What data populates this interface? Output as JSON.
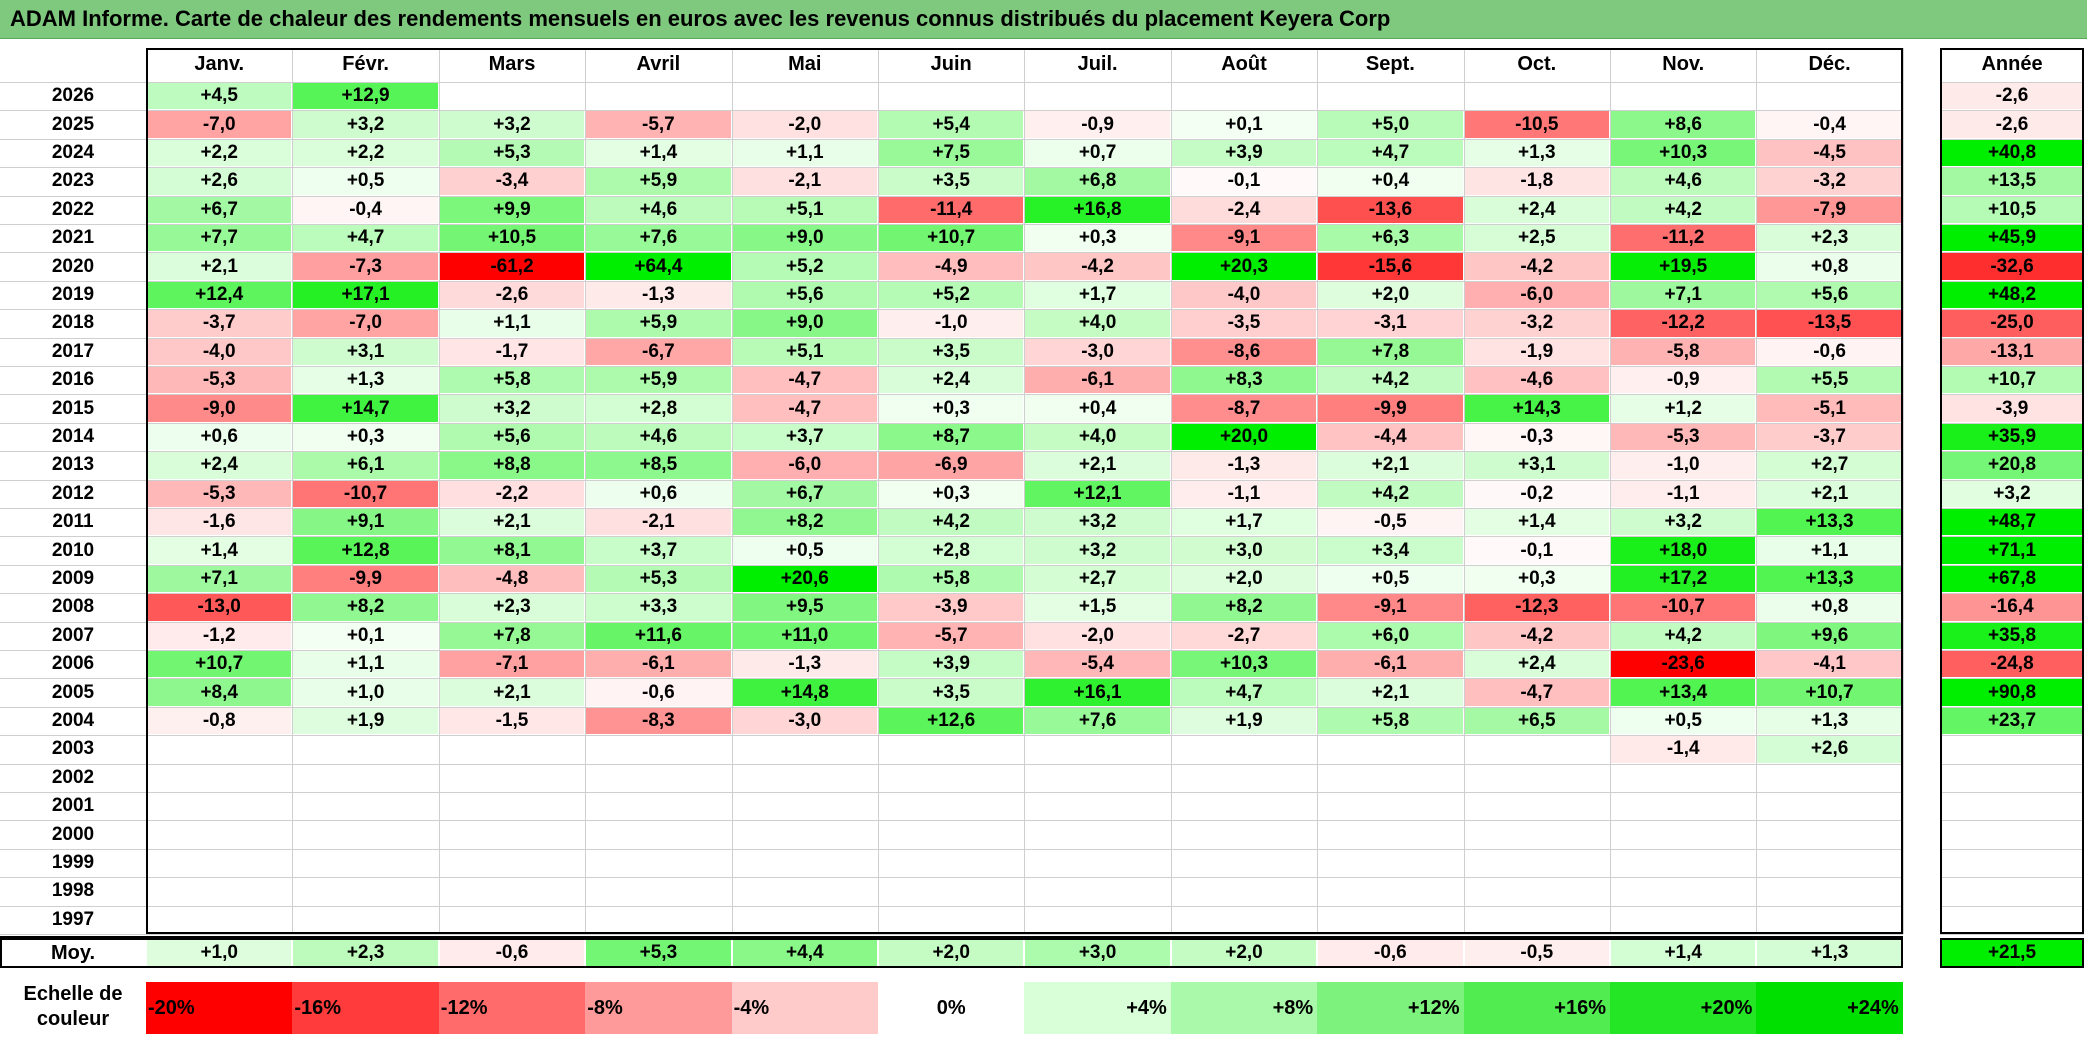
{
  "title": "ADAM Informe. Carte de chaleur des rendements mensuels en euros avec les revenus connus distribués du placement Keyera Corp",
  "months": [
    "Janv.",
    "Févr.",
    "Mars",
    "Avril",
    "Mai",
    "Juin",
    "Juil.",
    "Août",
    "Sept.",
    "Oct.",
    "Nov.",
    "Déc."
  ],
  "annual_header": "Année",
  "avg_label": "Moy.",
  "scale_label": "Echelle de\ncouleur",
  "colors": {
    "neg_max": "#ff0000",
    "neutral": "#ffffff",
    "pos_max": "#00ee00",
    "title_bg": "#7ec97e"
  },
  "chart_data": {
    "type": "heatmap",
    "title": "ADAM Informe. Carte de chaleur des rendements mensuels en euros avec les revenus connus distribués du placement Keyera Corp",
    "x_categories": [
      "Janv.",
      "Févr.",
      "Mars",
      "Avril",
      "Mai",
      "Juin",
      "Juil.",
      "Août",
      "Sept.",
      "Oct.",
      "Nov.",
      "Déc."
    ],
    "years": [
      "2026",
      "2025",
      "2024",
      "2023",
      "2022",
      "2021",
      "2020",
      "2019",
      "2018",
      "2017",
      "2016",
      "2015",
      "2014",
      "2013",
      "2012",
      "2011",
      "2010",
      "2009",
      "2008",
      "2007",
      "2006",
      "2005",
      "2004",
      "2003",
      "2002",
      "2001",
      "2000",
      "1999",
      "1998",
      "1997"
    ],
    "monthly": [
      [
        "+4,5",
        "+12,9",
        "",
        "",
        "",
        "",
        "",
        "",
        "",
        "",
        "",
        ""
      ],
      [
        "-7,0",
        "+3,2",
        "+3,2",
        "-5,7",
        "-2,0",
        "+5,4",
        "-0,9",
        "+0,1",
        "+5,0",
        "-10,5",
        "+8,6",
        "-0,4"
      ],
      [
        "+2,2",
        "+2,2",
        "+5,3",
        "+1,4",
        "+1,1",
        "+7,5",
        "+0,7",
        "+3,9",
        "+4,7",
        "+1,3",
        "+10,3",
        "-4,5"
      ],
      [
        "+2,6",
        "+0,5",
        "-3,4",
        "+5,9",
        "-2,1",
        "+3,5",
        "+6,8",
        "-0,1",
        "+0,4",
        "-1,8",
        "+4,6",
        "-3,2"
      ],
      [
        "+6,7",
        "-0,4",
        "+9,9",
        "+4,6",
        "+5,1",
        "-11,4",
        "+16,8",
        "-2,4",
        "-13,6",
        "+2,4",
        "+4,2",
        "-7,9"
      ],
      [
        "+7,7",
        "+4,7",
        "+10,5",
        "+7,6",
        "+9,0",
        "+10,7",
        "+0,3",
        "-9,1",
        "+6,3",
        "+2,5",
        "-11,2",
        "+2,3"
      ],
      [
        "+2,1",
        "-7,3",
        "-61,2",
        "+64,4",
        "+5,2",
        "-4,9",
        "-4,2",
        "+20,3",
        "-15,6",
        "-4,2",
        "+19,5",
        "+0,8"
      ],
      [
        "+12,4",
        "+17,1",
        "-2,6",
        "-1,3",
        "+5,6",
        "+5,2",
        "+1,7",
        "-4,0",
        "+2,0",
        "-6,0",
        "+7,1",
        "+5,6"
      ],
      [
        "-3,7",
        "-7,0",
        "+1,1",
        "+5,9",
        "+9,0",
        "-1,0",
        "+4,0",
        "-3,5",
        "-3,1",
        "-3,2",
        "-12,2",
        "-13,5"
      ],
      [
        "-4,0",
        "+3,1",
        "-1,7",
        "-6,7",
        "+5,1",
        "+3,5",
        "-3,0",
        "-8,6",
        "+7,8",
        "-1,9",
        "-5,8",
        "-0,6"
      ],
      [
        "-5,3",
        "+1,3",
        "+5,8",
        "+5,9",
        "-4,7",
        "+2,4",
        "-6,1",
        "+8,3",
        "+4,2",
        "-4,6",
        "-0,9",
        "+5,5"
      ],
      [
        "-9,0",
        "+14,7",
        "+3,2",
        "+2,8",
        "-4,7",
        "+0,3",
        "+0,4",
        "-8,7",
        "-9,9",
        "+14,3",
        "+1,2",
        "-5,1"
      ],
      [
        "+0,6",
        "+0,3",
        "+5,6",
        "+4,6",
        "+3,7",
        "+8,7",
        "+4,0",
        "+20,0",
        "-4,4",
        "-0,3",
        "-5,3",
        "-3,7"
      ],
      [
        "+2,4",
        "+6,1",
        "+8,8",
        "+8,5",
        "-6,0",
        "-6,9",
        "+2,1",
        "-1,3",
        "+2,1",
        "+3,1",
        "-1,0",
        "+2,7"
      ],
      [
        "-5,3",
        "-10,7",
        "-2,2",
        "+0,6",
        "+6,7",
        "+0,3",
        "+12,1",
        "-1,1",
        "+4,2",
        "-0,2",
        "-1,1",
        "+2,1"
      ],
      [
        "-1,6",
        "+9,1",
        "+2,1",
        "-2,1",
        "+8,2",
        "+4,2",
        "+3,2",
        "+1,7",
        "-0,5",
        "+1,4",
        "+3,2",
        "+13,3"
      ],
      [
        "+1,4",
        "+12,8",
        "+8,1",
        "+3,7",
        "+0,5",
        "+2,8",
        "+3,2",
        "+3,0",
        "+3,4",
        "-0,1",
        "+18,0",
        "+1,1"
      ],
      [
        "+7,1",
        "-9,9",
        "-4,8",
        "+5,3",
        "+20,6",
        "+5,8",
        "+2,7",
        "+2,0",
        "+0,5",
        "+0,3",
        "+17,2",
        "+13,3"
      ],
      [
        "-13,0",
        "+8,2",
        "+2,3",
        "+3,3",
        "+9,5",
        "-3,9",
        "+1,5",
        "+8,2",
        "-9,1",
        "-12,3",
        "-10,7",
        "+0,8"
      ],
      [
        "-1,2",
        "+0,1",
        "+7,8",
        "+11,6",
        "+11,0",
        "-5,7",
        "-2,0",
        "-2,7",
        "+6,0",
        "-4,2",
        "+4,2",
        "+9,6"
      ],
      [
        "+10,7",
        "+1,1",
        "-7,1",
        "-6,1",
        "-1,3",
        "+3,9",
        "-5,4",
        "+10,3",
        "-6,1",
        "+2,4",
        "-23,6",
        "-4,1"
      ],
      [
        "+8,4",
        "+1,0",
        "+2,1",
        "-0,6",
        "+14,8",
        "+3,5",
        "+16,1",
        "+4,7",
        "+2,1",
        "-4,7",
        "+13,4",
        "+10,7"
      ],
      [
        "-0,8",
        "+1,9",
        "-1,5",
        "-8,3",
        "-3,0",
        "+12,6",
        "+7,6",
        "+1,9",
        "+5,8",
        "+6,5",
        "+0,5",
        "+1,3"
      ],
      [
        "",
        "",
        "",
        "",
        "",
        "",
        "",
        "",
        "",
        "",
        "-1,4",
        "+2,6"
      ],
      [
        "",
        "",
        "",
        "",
        "",
        "",
        "",
        "",
        "",
        "",
        "",
        ""
      ],
      [
        "",
        "",
        "",
        "",
        "",
        "",
        "",
        "",
        "",
        "",
        "",
        ""
      ],
      [
        "",
        "",
        "",
        "",
        "",
        "",
        "",
        "",
        "",
        "",
        "",
        ""
      ],
      [
        "",
        "",
        "",
        "",
        "",
        "",
        "",
        "",
        "",
        "",
        "",
        ""
      ],
      [
        "",
        "",
        "",
        "",
        "",
        "",
        "",
        "",
        "",
        "",
        "",
        ""
      ],
      [
        "",
        "",
        "",
        "",
        "",
        "",
        "",
        "",
        "",
        "",
        "",
        ""
      ]
    ],
    "annual": [
      "-2,6",
      "-2,6",
      "+40,8",
      "+13,5",
      "+10,5",
      "+45,9",
      "-32,6",
      "+48,2",
      "-25,0",
      "-13,1",
      "+10,7",
      "-3,9",
      "+35,9",
      "+20,8",
      "+3,2",
      "+48,7",
      "+71,1",
      "+67,8",
      "-16,4",
      "+35,8",
      "-24,8",
      "+90,8",
      "+23,7",
      "",
      "",
      "",
      "",
      "",
      "",
      ""
    ],
    "averages": [
      "+1,0",
      "+2,3",
      "-0,6",
      "+5,3",
      "+4,4",
      "+2,0",
      "+3,0",
      "+2,0",
      "-0,6",
      "-0,5",
      "+1,4",
      "+1,3"
    ],
    "average_annual": "+21,5",
    "scale": [
      "-20%",
      "-16%",
      "-12%",
      "-8%",
      "-4%",
      "0%",
      "+4%",
      "+8%",
      "+12%",
      "+16%",
      "+20%",
      "+24%"
    ]
  }
}
